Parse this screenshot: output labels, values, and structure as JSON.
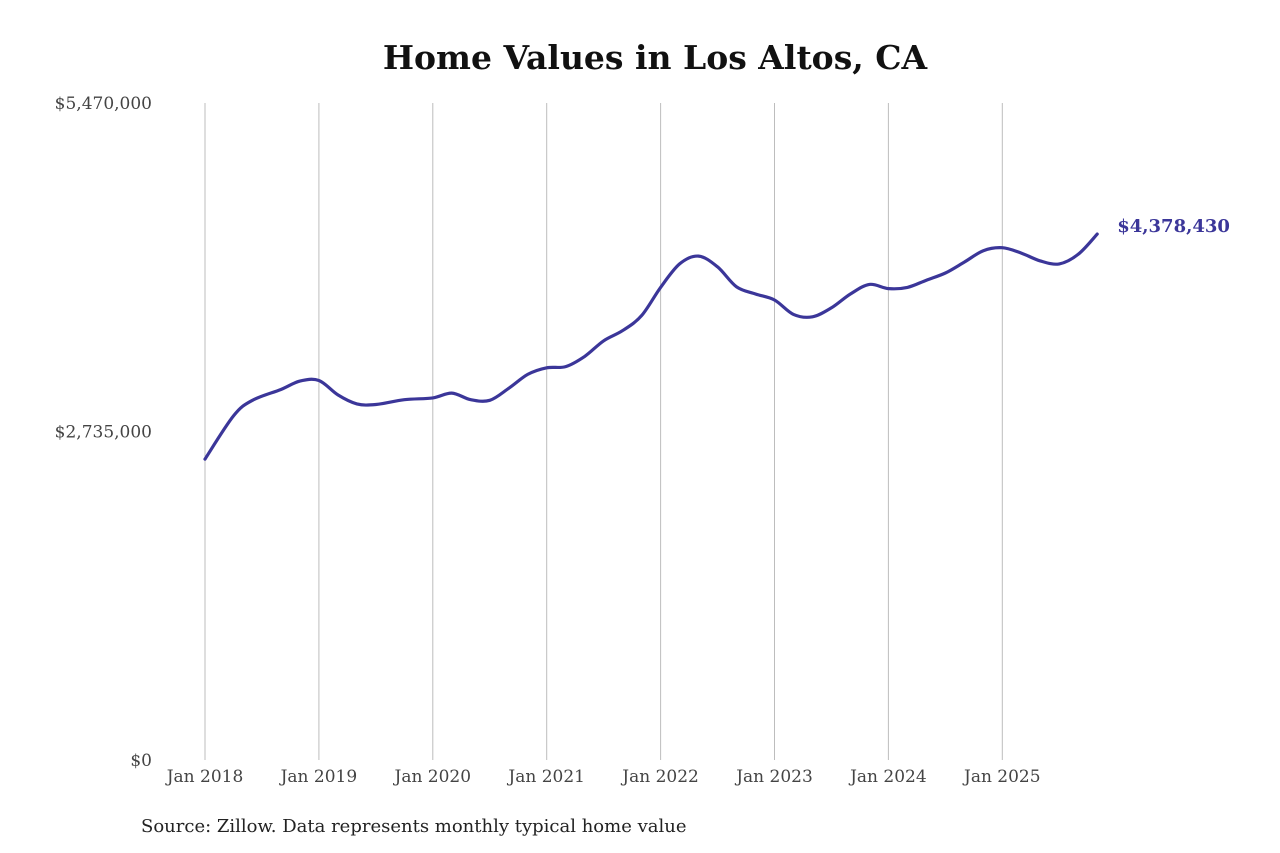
{
  "chart_data": {
    "type": "line",
    "title": "Home Values in Los Altos, CA",
    "xlabel": "",
    "ylabel": "",
    "ylim": [
      0,
      5470000
    ],
    "y_ticks": [
      {
        "value": 5470000,
        "label": "$5,470,000"
      },
      {
        "value": 2735000,
        "label": "$2,735,000"
      },
      {
        "value": 0,
        "label": "$0"
      }
    ],
    "x_ticks": [
      {
        "value": "2018-01",
        "label": "Jan 2018"
      },
      {
        "value": "2019-01",
        "label": "Jan 2019"
      },
      {
        "value": "2020-01",
        "label": "Jan 2020"
      },
      {
        "value": "2021-01",
        "label": "Jan 2021"
      },
      {
        "value": "2022-01",
        "label": "Jan 2022"
      },
      {
        "value": "2023-01",
        "label": "Jan 2023"
      },
      {
        "value": "2024-01",
        "label": "Jan 2024"
      },
      {
        "value": "2025-01",
        "label": "Jan 2025"
      }
    ],
    "xlim": [
      "2018-01",
      "2025-11"
    ],
    "grid": {
      "vertical": true,
      "horizontal": false
    },
    "line_color": "#3b3699",
    "series": [
      {
        "x": [
          "2018-01",
          "2018-04",
          "2018-06",
          "2018-09",
          "2018-11",
          "2019-01",
          "2019-03",
          "2019-05",
          "2019-07",
          "2019-10",
          "2020-01",
          "2020-03",
          "2020-05",
          "2020-07",
          "2020-09",
          "2020-11",
          "2021-01",
          "2021-03",
          "2021-05",
          "2021-07",
          "2021-09",
          "2021-11",
          "2022-01",
          "2022-03",
          "2022-05",
          "2022-07",
          "2022-09",
          "2022-11",
          "2023-01",
          "2023-03",
          "2023-05",
          "2023-07",
          "2023-09",
          "2023-11",
          "2024-01",
          "2024-03",
          "2024-05",
          "2024-07",
          "2024-09",
          "2024-11",
          "2025-01",
          "2025-03",
          "2025-05",
          "2025-07",
          "2025-09",
          "2025-11"
        ],
        "values": [
          2505000,
          2865000,
          2995000,
          3085000,
          3155000,
          3160000,
          3040000,
          2965000,
          2960000,
          3000000,
          3015000,
          3055000,
          3000000,
          2995000,
          3095000,
          3210000,
          3265000,
          3275000,
          3360000,
          3490000,
          3575000,
          3700000,
          3935000,
          4130000,
          4195000,
          4105000,
          3940000,
          3880000,
          3830000,
          3710000,
          3690000,
          3765000,
          3880000,
          3960000,
          3925000,
          3935000,
          3995000,
          4055000,
          4145000,
          4240000,
          4265000,
          4220000,
          4155000,
          4130000,
          4210000,
          4378430
        ]
      }
    ],
    "end_label": "$4,378,430"
  },
  "source": "Source: Zillow. Data represents monthly typical home value"
}
